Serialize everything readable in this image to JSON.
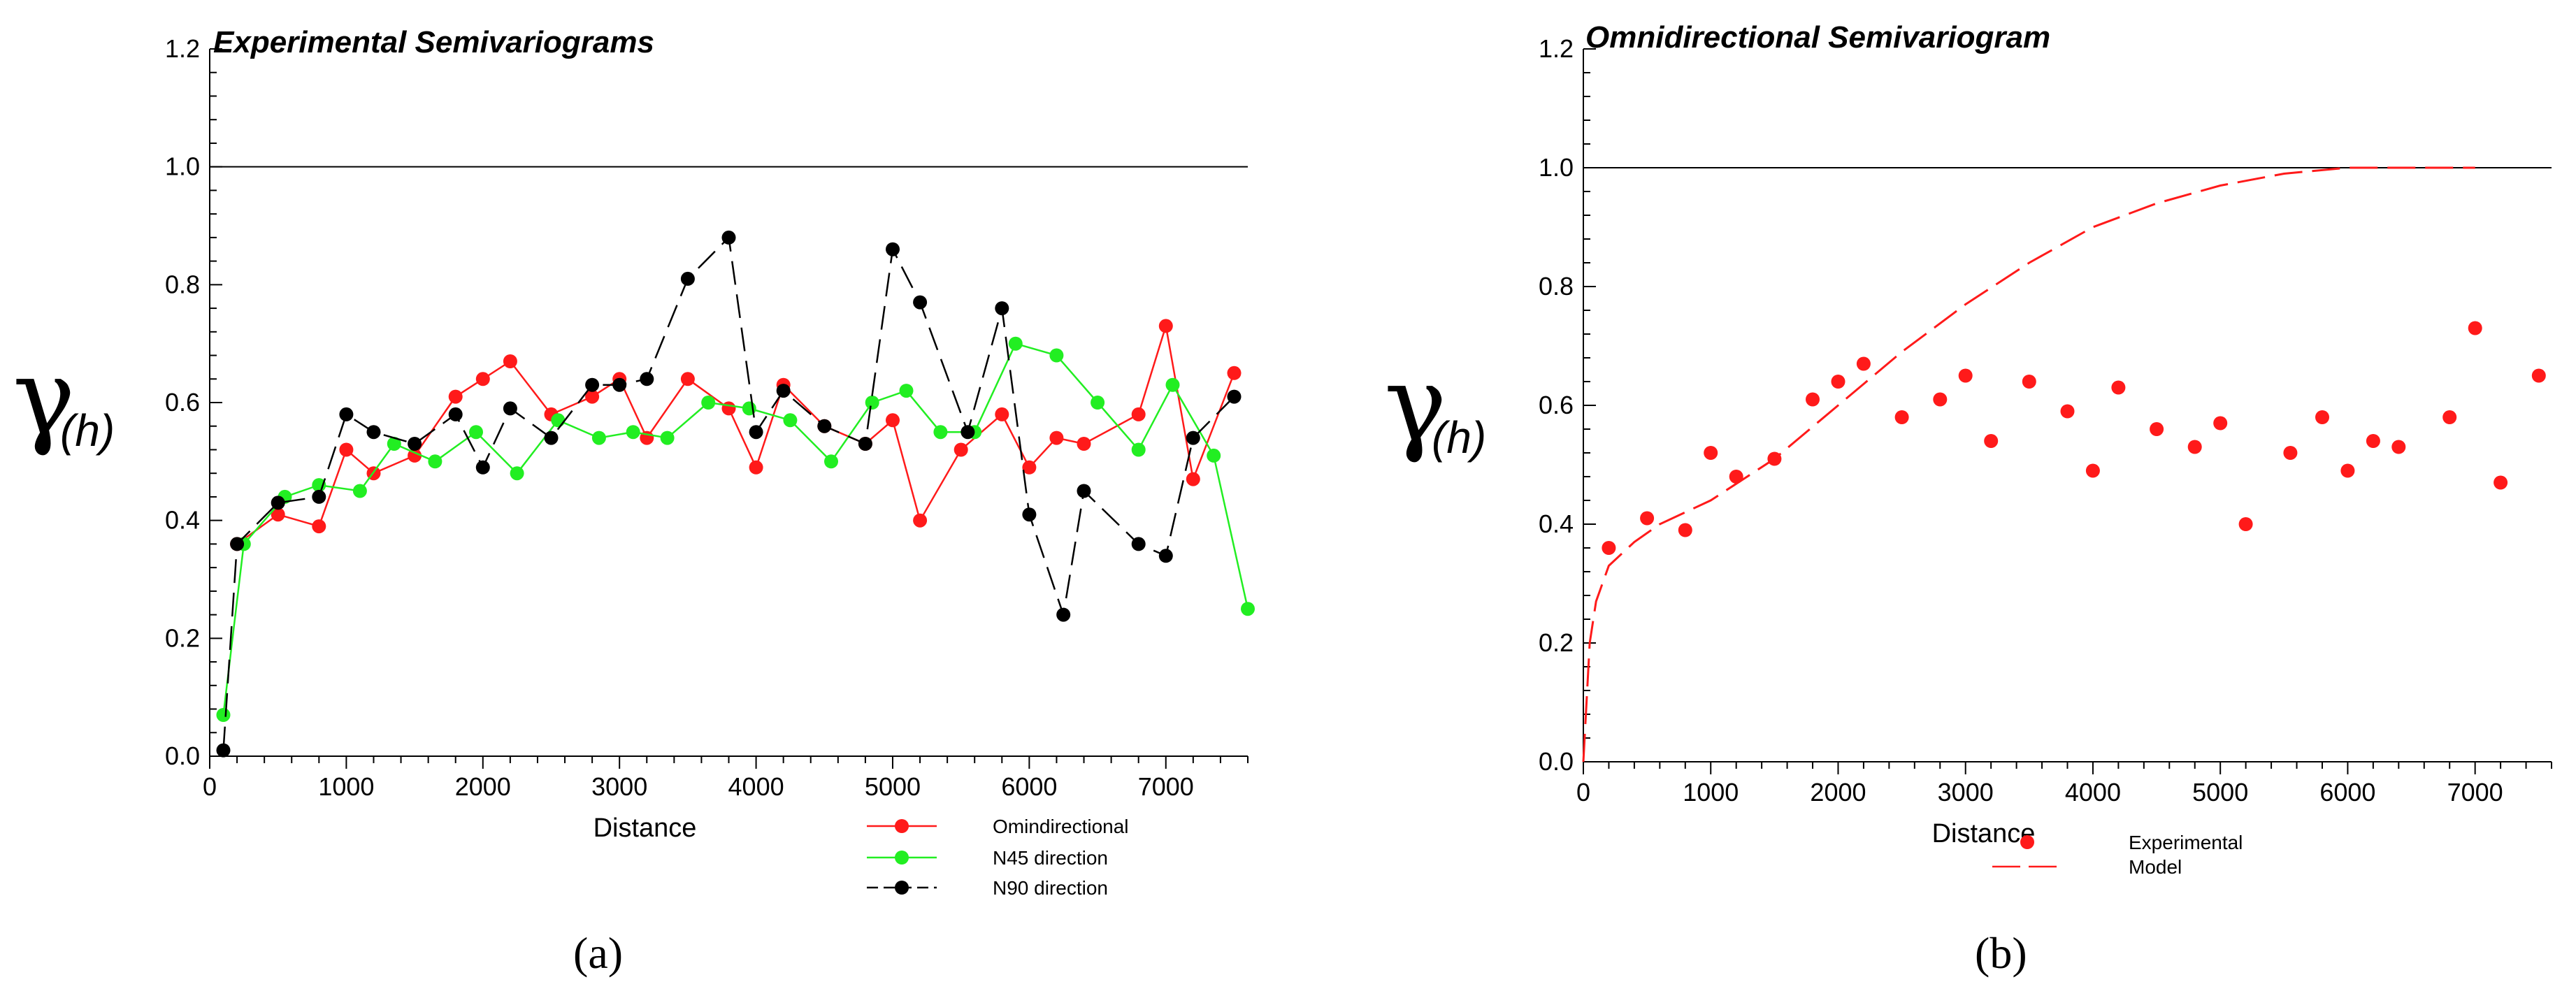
{
  "chart_data": [
    {
      "type": "line",
      "title": "Experimental Semivariograms",
      "xlabel": "Distance",
      "ylabel_symbol": "γ",
      "ylabel_subscript": "(h)",
      "xlim": [
        0,
        7600
      ],
      "ylim": [
        0,
        1.2
      ],
      "xticks": [
        0,
        1000,
        2000,
        3000,
        4000,
        5000,
        6000,
        7000
      ],
      "yticks": [
        0.0,
        0.2,
        0.4,
        0.6,
        0.8,
        1.0,
        1.2
      ],
      "ytick_labels": [
        "0.0",
        "0.2",
        "0.4",
        "0.6",
        "0.8",
        "1.0",
        "1.2"
      ],
      "reference_line": 1.0,
      "legend_position": "bottom-right",
      "caption": "(a)",
      "series": [
        {
          "name": "Omindirectional",
          "color": "#ff1a1a",
          "dash": "solid",
          "x": [
            200,
            500,
            800,
            1000,
            1200,
            1500,
            1800,
            2000,
            2200,
            2500,
            2800,
            3000,
            3200,
            3500,
            3800,
            4000,
            4200,
            4500,
            4800,
            5000,
            5200,
            5500,
            5800,
            6000,
            6200,
            6400,
            6800,
            7000,
            7200,
            7500
          ],
          "y": [
            0.36,
            0.41,
            0.39,
            0.52,
            0.48,
            0.51,
            0.61,
            0.64,
            0.67,
            0.58,
            0.61,
            0.64,
            0.54,
            0.64,
            0.59,
            0.49,
            0.63,
            0.56,
            0.53,
            0.57,
            0.4,
            0.52,
            0.58,
            0.49,
            0.54,
            0.53,
            0.58,
            0.73,
            0.47,
            0.65
          ]
        },
        {
          "name": "N45 direction",
          "color": "#22ee22",
          "dash": "solid",
          "x": [
            100,
            250,
            550,
            800,
            1100,
            1350,
            1650,
            1950,
            2250,
            2550,
            2850,
            3100,
            3350,
            3650,
            3950,
            4250,
            4550,
            4850,
            5100,
            5350,
            5600,
            5900,
            6200,
            6500,
            6800,
            7050,
            7350,
            7600
          ],
          "y": [
            0.07,
            0.36,
            0.44,
            0.46,
            0.45,
            0.53,
            0.5,
            0.55,
            0.48,
            0.57,
            0.54,
            0.55,
            0.54,
            0.6,
            0.59,
            0.57,
            0.5,
            0.6,
            0.62,
            0.55,
            0.55,
            0.7,
            0.68,
            0.6,
            0.52,
            0.63,
            0.51,
            0.25
          ]
        },
        {
          "name": "N90 direction",
          "color": "#000000",
          "dash": "dashed",
          "x": [
            100,
            200,
            500,
            800,
            1000,
            1200,
            1500,
            1800,
            2000,
            2200,
            2500,
            2800,
            3000,
            3200,
            3500,
            3800,
            4000,
            4200,
            4500,
            4800,
            5000,
            5200,
            5550,
            5800,
            6000,
            6250,
            6400,
            6800,
            7000,
            7200,
            7500
          ],
          "y": [
            0.01,
            0.36,
            0.43,
            0.44,
            0.58,
            0.55,
            0.53,
            0.58,
            0.49,
            0.59,
            0.54,
            0.63,
            0.63,
            0.64,
            0.81,
            0.88,
            0.55,
            0.62,
            0.56,
            0.53,
            0.86,
            0.77,
            0.55,
            0.76,
            0.41,
            0.24,
            0.45,
            0.36,
            0.34,
            0.54,
            0.61
          ]
        }
      ]
    },
    {
      "type": "scatter",
      "title": "Omnidirectional Semivariogram",
      "xlabel": "Distance",
      "ylabel_symbol": "γ",
      "ylabel_subscript": "(h)",
      "xlim": [
        0,
        7600
      ],
      "ylim": [
        0,
        1.2
      ],
      "xticks": [
        0,
        1000,
        2000,
        3000,
        4000,
        5000,
        6000,
        7000
      ],
      "yticks": [
        0.0,
        0.2,
        0.4,
        0.6,
        0.8,
        1.0,
        1.2
      ],
      "ytick_labels": [
        "0.0",
        "0.2",
        "0.4",
        "0.6",
        "0.8",
        "1.0",
        "1.2"
      ],
      "reference_line": 1.0,
      "legend_position": "bottom-right",
      "caption": "(b)",
      "series": [
        {
          "name": "Experimental",
          "color": "#ff1a1a",
          "x": [
            200,
            500,
            800,
            1000,
            1200,
            1500,
            1800,
            2000,
            2200,
            2500,
            2800,
            3000,
            3200,
            3500,
            3800,
            4000,
            4200,
            4500,
            4800,
            5000,
            5200,
            5550,
            5800,
            6000,
            6200,
            6400,
            6800,
            7000,
            7200,
            7500
          ],
          "y": [
            0.36,
            0.41,
            0.39,
            0.52,
            0.48,
            0.51,
            0.61,
            0.64,
            0.67,
            0.58,
            0.61,
            0.65,
            0.54,
            0.64,
            0.59,
            0.49,
            0.63,
            0.56,
            0.53,
            0.57,
            0.4,
            0.52,
            0.58,
            0.49,
            0.54,
            0.53,
            0.58,
            0.73,
            0.47,
            0.65
          ]
        }
      ],
      "model": {
        "name": "Model",
        "color": "#ff1a1a",
        "dash": "long-dash",
        "x": [
          0,
          50,
          100,
          200,
          400,
          600,
          800,
          1000,
          1500,
          2000,
          2500,
          3000,
          3500,
          4000,
          4500,
          5000,
          5500,
          6000,
          6500,
          7000
        ],
        "y": [
          0.0,
          0.2,
          0.27,
          0.33,
          0.37,
          0.4,
          0.42,
          0.44,
          0.51,
          0.6,
          0.69,
          0.77,
          0.84,
          0.9,
          0.94,
          0.97,
          0.99,
          1.0,
          1.0,
          1.0
        ]
      }
    }
  ]
}
